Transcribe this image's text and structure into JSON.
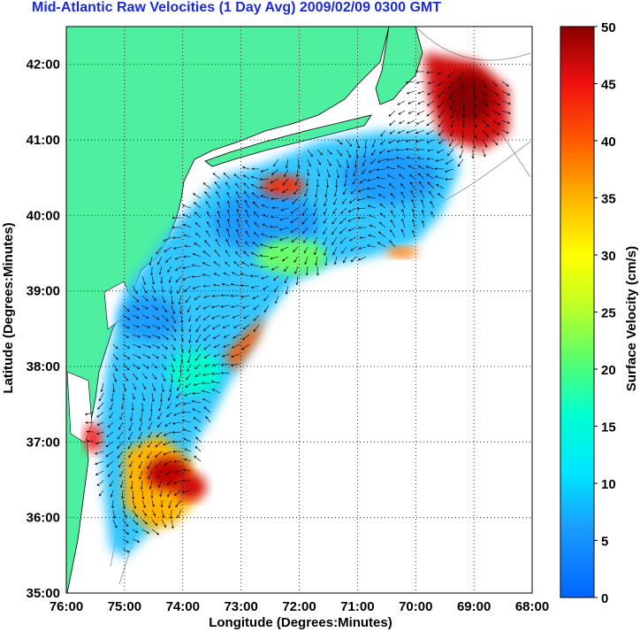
{
  "title": "Mid-Atlantic Raw Velocities (1 Day Avg) 2009/02/09 0300 GMT",
  "x_axis": {
    "label": "Longitude (Degrees:Minutes)",
    "ticks": [
      "76:00",
      "75:00",
      "74:00",
      "73:00",
      "72:00",
      "71:00",
      "70:00",
      "69:00",
      "68:00"
    ]
  },
  "y_axis": {
    "label": "Latitude (Degrees:Minutes)",
    "ticks": [
      "35:00",
      "36:00",
      "37:00",
      "38:00",
      "39:00",
      "40:00",
      "41:00",
      "42:00"
    ]
  },
  "colorbar": {
    "label": "Surface Velocity (cm/s)",
    "ticks": [
      "0",
      "5",
      "10",
      "15",
      "20",
      "25",
      "30",
      "35",
      "40",
      "45",
      "50"
    ],
    "min": 0,
    "max": 50
  },
  "colors": {
    "land": "#4ef0a0",
    "ocean": "#ffffff",
    "title": "#1a2ad6",
    "grid": "#000000"
  },
  "map_extent": {
    "lon_min": -76,
    "lon_max": -68,
    "lat_min": 35,
    "lat_max": 42.5
  }
}
